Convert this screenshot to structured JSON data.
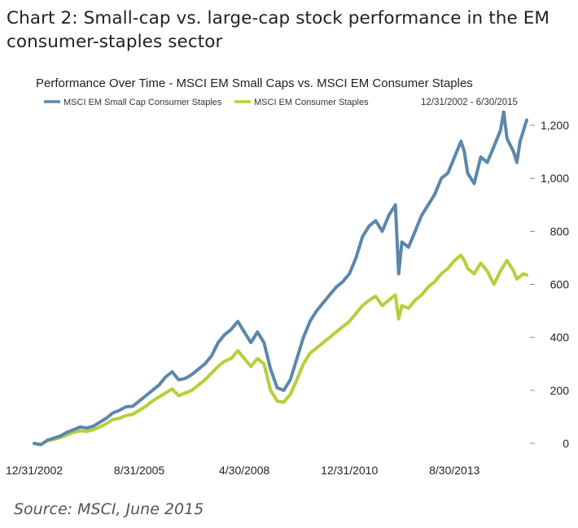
{
  "figure": {
    "title_line1": "Chart 2:  Small-cap vs. large-cap stock performance in the EM",
    "title_line2": "consumer-staples sector",
    "source": "Source: MSCI, June 2015"
  },
  "chart_data": {
    "type": "line",
    "title": "Performance Over Time - MSCI EM Small Caps vs. MSCI EM Consumer Staples",
    "date_range_label": "12/31/2002 - 6/30/2015",
    "xlabel": "",
    "ylabel": "",
    "ylim": [
      -20,
      1260
    ],
    "yticks": [
      0,
      200,
      400,
      600,
      800,
      1000,
      1200
    ],
    "ytick_labels": [
      "0",
      "200",
      "400",
      "600",
      "800",
      "1,000",
      "1,200"
    ],
    "xticks": [
      {
        "t": 0,
        "label": "12/31/2002"
      },
      {
        "t": 32,
        "label": "8/31/2005"
      },
      {
        "t": 64,
        "label": "4/30/2008"
      },
      {
        "t": 96,
        "label": "12/31/2010"
      },
      {
        "t": 128,
        "label": "8/30/2013"
      }
    ],
    "x_start_month": 0,
    "x_end_month": 150,
    "legend_position": "top-left",
    "grid": false,
    "series": [
      {
        "name": "MSCI EM Small Cap Consumer Staples",
        "color": "#5b87ab",
        "points": [
          [
            0,
            0
          ],
          [
            2,
            -5
          ],
          [
            4,
            12
          ],
          [
            6,
            20
          ],
          [
            8,
            28
          ],
          [
            10,
            42
          ],
          [
            12,
            52
          ],
          [
            14,
            62
          ],
          [
            16,
            58
          ],
          [
            18,
            65
          ],
          [
            20,
            80
          ],
          [
            22,
            95
          ],
          [
            24,
            115
          ],
          [
            26,
            125
          ],
          [
            28,
            138
          ],
          [
            30,
            140
          ],
          [
            32,
            160
          ],
          [
            34,
            180
          ],
          [
            36,
            200
          ],
          [
            38,
            220
          ],
          [
            40,
            250
          ],
          [
            42,
            270
          ],
          [
            44,
            240
          ],
          [
            46,
            245
          ],
          [
            48,
            260
          ],
          [
            50,
            280
          ],
          [
            52,
            300
          ],
          [
            54,
            330
          ],
          [
            56,
            380
          ],
          [
            58,
            410
          ],
          [
            60,
            430
          ],
          [
            62,
            460
          ],
          [
            64,
            420
          ],
          [
            66,
            380
          ],
          [
            68,
            420
          ],
          [
            70,
            380
          ],
          [
            72,
            280
          ],
          [
            74,
            210
          ],
          [
            76,
            200
          ],
          [
            78,
            240
          ],
          [
            80,
            320
          ],
          [
            82,
            400
          ],
          [
            84,
            460
          ],
          [
            86,
            500
          ],
          [
            88,
            530
          ],
          [
            90,
            560
          ],
          [
            92,
            590
          ],
          [
            94,
            610
          ],
          [
            96,
            640
          ],
          [
            98,
            700
          ],
          [
            100,
            780
          ],
          [
            102,
            820
          ],
          [
            104,
            840
          ],
          [
            106,
            800
          ],
          [
            108,
            860
          ],
          [
            110,
            900
          ],
          [
            111,
            640
          ],
          [
            112,
            760
          ],
          [
            114,
            740
          ],
          [
            116,
            800
          ],
          [
            118,
            860
          ],
          [
            120,
            900
          ],
          [
            122,
            940
          ],
          [
            124,
            1000
          ],
          [
            126,
            1020
          ],
          [
            128,
            1080
          ],
          [
            130,
            1140
          ],
          [
            131,
            1100
          ],
          [
            132,
            1020
          ],
          [
            134,
            980
          ],
          [
            136,
            1080
          ],
          [
            138,
            1060
          ],
          [
            140,
            1120
          ],
          [
            142,
            1180
          ],
          [
            143,
            1250
          ],
          [
            144,
            1150
          ],
          [
            146,
            1100
          ],
          [
            147,
            1060
          ],
          [
            148,
            1140
          ],
          [
            149,
            1180
          ],
          [
            150,
            1220
          ]
        ]
      },
      {
        "name": "MSCI EM Consumer Staples",
        "color": "#b5cf3a",
        "points": [
          [
            0,
            0
          ],
          [
            2,
            -5
          ],
          [
            4,
            10
          ],
          [
            6,
            15
          ],
          [
            8,
            22
          ],
          [
            10,
            32
          ],
          [
            12,
            42
          ],
          [
            14,
            48
          ],
          [
            16,
            45
          ],
          [
            18,
            52
          ],
          [
            20,
            62
          ],
          [
            22,
            75
          ],
          [
            24,
            90
          ],
          [
            26,
            95
          ],
          [
            28,
            105
          ],
          [
            30,
            110
          ],
          [
            32,
            125
          ],
          [
            34,
            140
          ],
          [
            36,
            160
          ],
          [
            38,
            175
          ],
          [
            40,
            190
          ],
          [
            42,
            205
          ],
          [
            44,
            180
          ],
          [
            46,
            190
          ],
          [
            48,
            200
          ],
          [
            50,
            220
          ],
          [
            52,
            240
          ],
          [
            54,
            265
          ],
          [
            56,
            290
          ],
          [
            58,
            310
          ],
          [
            60,
            320
          ],
          [
            62,
            350
          ],
          [
            64,
            320
          ],
          [
            66,
            290
          ],
          [
            68,
            320
          ],
          [
            70,
            300
          ],
          [
            72,
            200
          ],
          [
            74,
            160
          ],
          [
            76,
            155
          ],
          [
            78,
            185
          ],
          [
            80,
            240
          ],
          [
            82,
            300
          ],
          [
            84,
            340
          ],
          [
            86,
            360
          ],
          [
            88,
            380
          ],
          [
            90,
            400
          ],
          [
            92,
            420
          ],
          [
            94,
            440
          ],
          [
            96,
            460
          ],
          [
            98,
            490
          ],
          [
            100,
            520
          ],
          [
            102,
            540
          ],
          [
            104,
            555
          ],
          [
            106,
            520
          ],
          [
            108,
            540
          ],
          [
            110,
            560
          ],
          [
            111,
            470
          ],
          [
            112,
            520
          ],
          [
            114,
            510
          ],
          [
            116,
            540
          ],
          [
            118,
            560
          ],
          [
            120,
            590
          ],
          [
            122,
            610
          ],
          [
            124,
            640
          ],
          [
            126,
            660
          ],
          [
            128,
            690
          ],
          [
            130,
            710
          ],
          [
            131,
            690
          ],
          [
            132,
            660
          ],
          [
            134,
            640
          ],
          [
            136,
            680
          ],
          [
            138,
            650
          ],
          [
            140,
            600
          ],
          [
            142,
            650
          ],
          [
            143,
            670
          ],
          [
            144,
            690
          ],
          [
            146,
            650
          ],
          [
            147,
            620
          ],
          [
            148,
            630
          ],
          [
            149,
            640
          ],
          [
            150,
            635
          ]
        ]
      }
    ]
  }
}
